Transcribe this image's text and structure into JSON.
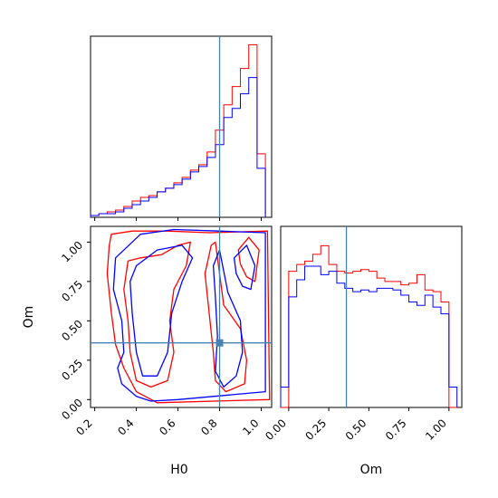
{
  "colors": {
    "series_a": "#ff0000",
    "series_b": "#0000ff",
    "truth": "#4682b4",
    "axes": "#000000"
  },
  "chart_data": [
    {
      "type": "histogram",
      "panel": "H0 marginal",
      "xlabel": "",
      "xlim": [
        0.18,
        1.05
      ],
      "truth": 0.8,
      "bin_edges": [
        0.18,
        0.22,
        0.26,
        0.3,
        0.34,
        0.38,
        0.42,
        0.46,
        0.5,
        0.54,
        0.58,
        0.62,
        0.66,
        0.7,
        0.74,
        0.78,
        0.82,
        0.86,
        0.9,
        0.94,
        0.98,
        1.02
      ],
      "series": [
        {
          "color": "red",
          "counts": [
            1,
            2,
            3,
            4,
            6,
            9,
            11,
            12,
            14,
            16,
            19,
            22,
            26,
            29,
            36,
            48,
            62,
            72,
            82,
            95,
            35
          ]
        },
        {
          "color": "blue",
          "counts": [
            1,
            2,
            2,
            3,
            5,
            7,
            9,
            11,
            14,
            16,
            18,
            21,
            25,
            28,
            33,
            40,
            55,
            60,
            68,
            77,
            27
          ]
        }
      ]
    },
    {
      "type": "histogram",
      "panel": "Om marginal",
      "xlabel": "Om",
      "xlim": [
        -0.05,
        1.08
      ],
      "x_ticks": [
        "0.00",
        "0.25",
        "0.50",
        "0.75",
        "1.00"
      ],
      "truth": 0.36,
      "bin_edges": [
        -0.05,
        0.0,
        0.05,
        0.1,
        0.15,
        0.2,
        0.25,
        0.3,
        0.35,
        0.4,
        0.45,
        0.5,
        0.55,
        0.6,
        0.65,
        0.7,
        0.75,
        0.8,
        0.85,
        0.9,
        0.95,
        1.0,
        1.05
      ],
      "series": [
        {
          "color": "red",
          "counts": [
            0,
            80,
            84,
            86,
            90,
            95,
            84,
            80,
            79,
            80,
            81,
            80,
            76,
            74,
            74,
            72,
            73,
            78,
            69,
            68,
            62,
            0
          ]
        },
        {
          "color": "blue",
          "counts": [
            12,
            65,
            75,
            83,
            83,
            78,
            80,
            73,
            70,
            68,
            69,
            68,
            70,
            70,
            69,
            66,
            62,
            60,
            66,
            59,
            55,
            12
          ]
        }
      ]
    },
    {
      "type": "contour",
      "panel": "H0 vs Om joint",
      "xlabel": "H0",
      "ylabel": "Om",
      "xlim": [
        0.18,
        1.05
      ],
      "ylim": [
        -0.05,
        1.1
      ],
      "x_ticks": [
        "0.2",
        "0.4",
        "0.6",
        "0.8",
        "1.0"
      ],
      "y_ticks": [
        "0.00",
        "0.25",
        "0.50",
        "0.75",
        "1.00"
      ],
      "truth": [
        0.8,
        0.36
      ],
      "series": [
        {
          "color": "red",
          "contours": [
            [
              [
                0.27,
                0.98
              ],
              [
                0.28,
                1.05
              ],
              [
                0.38,
                1.07
              ],
              [
                0.55,
                1.07
              ],
              [
                0.75,
                1.06
              ],
              [
                1.03,
                1.07
              ],
              [
                1.04,
                0.0
              ],
              [
                0.5,
                -0.02
              ],
              [
                0.4,
                0.05
              ],
              [
                0.34,
                0.2
              ],
              [
                0.3,
                0.35
              ],
              [
                0.28,
                0.55
              ],
              [
                0.26,
                0.8
              ]
            ],
            [
              [
                0.36,
                0.88
              ],
              [
                0.42,
                0.9
              ],
              [
                0.52,
                0.92
              ],
              [
                0.6,
                0.98
              ],
              [
                0.66,
                1.0
              ],
              [
                0.64,
                0.85
              ],
              [
                0.58,
                0.7
              ],
              [
                0.56,
                0.5
              ],
              [
                0.58,
                0.3
              ],
              [
                0.55,
                0.12
              ],
              [
                0.47,
                0.08
              ],
              [
                0.4,
                0.12
              ],
              [
                0.37,
                0.3
              ],
              [
                0.36,
                0.5
              ],
              [
                0.34,
                0.7
              ]
            ],
            [
              [
                0.76,
                0.98
              ],
              [
                0.78,
                1.0
              ],
              [
                0.82,
                0.6
              ],
              [
                0.9,
                0.45
              ],
              [
                0.93,
                0.25
              ],
              [
                0.92,
                0.1
              ],
              [
                0.83,
                0.05
              ],
              [
                0.78,
                0.12
              ],
              [
                0.77,
                0.3
              ],
              [
                0.75,
                0.55
              ],
              [
                0.73,
                0.8
              ]
            ],
            [
              [
                0.89,
                0.95
              ],
              [
                0.94,
                1.03
              ],
              [
                0.99,
                0.95
              ],
              [
                0.97,
                0.75
              ],
              [
                0.93,
                0.78
              ],
              [
                0.9,
                0.86
              ]
            ]
          ]
        },
        {
          "color": "blue",
          "contours": [
            [
              [
                0.3,
                0.9
              ],
              [
                0.42,
                1.05
              ],
              [
                0.58,
                1.08
              ],
              [
                0.8,
                1.07
              ],
              [
                1.02,
                1.06
              ],
              [
                1.02,
                0.05
              ],
              [
                0.6,
                0.0
              ],
              [
                0.47,
                -0.01
              ],
              [
                0.4,
                0.02
              ],
              [
                0.33,
                0.1
              ],
              [
                0.31,
                0.2
              ],
              [
                0.34,
                0.3
              ],
              [
                0.33,
                0.5
              ],
              [
                0.29,
                0.7
              ]
            ],
            [
              [
                0.4,
                0.85
              ],
              [
                0.5,
                0.95
              ],
              [
                0.62,
                0.98
              ],
              [
                0.67,
                0.9
              ],
              [
                0.62,
                0.75
              ],
              [
                0.57,
                0.55
              ],
              [
                0.55,
                0.3
              ],
              [
                0.5,
                0.15
              ],
              [
                0.43,
                0.15
              ],
              [
                0.4,
                0.3
              ],
              [
                0.38,
                0.55
              ],
              [
                0.37,
                0.75
              ]
            ],
            [
              [
                0.8,
                0.95
              ],
              [
                0.84,
                0.68
              ],
              [
                0.9,
                0.5
              ],
              [
                0.91,
                0.3
              ],
              [
                0.88,
                0.15
              ],
              [
                0.82,
                0.08
              ],
              [
                0.78,
                0.18
              ],
              [
                0.79,
                0.4
              ],
              [
                0.78,
                0.65
              ],
              [
                0.77,
                0.85
              ]
            ],
            [
              [
                0.87,
                0.9
              ],
              [
                0.93,
                0.98
              ],
              [
                0.97,
                0.85
              ],
              [
                0.95,
                0.7
              ],
              [
                0.91,
                0.72
              ],
              [
                0.88,
                0.8
              ]
            ]
          ]
        }
      ]
    }
  ]
}
